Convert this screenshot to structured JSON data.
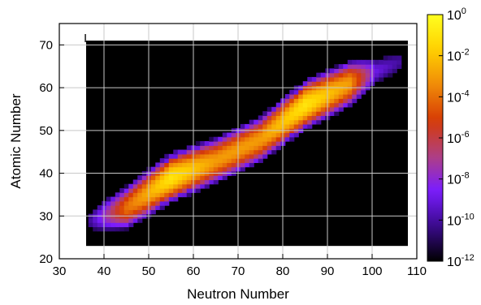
{
  "chart_data": {
    "type": "heatmap",
    "title": "",
    "xlabel": "Neutron Number",
    "ylabel": "Atomic Number",
    "xlim": [
      30,
      110
    ],
    "ylim": [
      20,
      75
    ],
    "xticks": [
      30,
      40,
      50,
      60,
      70,
      80,
      90,
      100,
      110
    ],
    "yticks": [
      20,
      30,
      40,
      50,
      60,
      70
    ],
    "grid": true,
    "plot_region": {
      "x": [
        36,
        108
      ],
      "y": [
        23,
        71
      ]
    },
    "band": {
      "description_points": [
        {
          "x": 37,
          "y": 29,
          "log10_value": -10
        },
        {
          "x": 45,
          "y": 32,
          "log10_value": -4
        },
        {
          "x": 55,
          "y": 39,
          "log10_value": -1
        },
        {
          "x": 65,
          "y": 43,
          "log10_value": -3
        },
        {
          "x": 75,
          "y": 48,
          "log10_value": -3
        },
        {
          "x": 85,
          "y": 56,
          "log10_value": -1
        },
        {
          "x": 95,
          "y": 61,
          "log10_value": -3
        },
        {
          "x": 101,
          "y": 64,
          "log10_value": -9
        },
        {
          "x": 106,
          "y": 66,
          "log10_value": -10
        }
      ],
      "half_width_Z": 5
    },
    "colorbar": {
      "scale": "log",
      "range_log10": [
        -12,
        0
      ],
      "tick_exponents": [
        0,
        -2,
        -4,
        -6,
        -8,
        -10,
        -12
      ],
      "tick_base": "10",
      "colors": [
        "#000000",
        "#3a0a8c",
        "#7a1cff",
        "#b04080",
        "#d63a05",
        "#f08a08",
        "#ffd000",
        "#ffff20"
      ]
    },
    "corner_text": "I"
  }
}
